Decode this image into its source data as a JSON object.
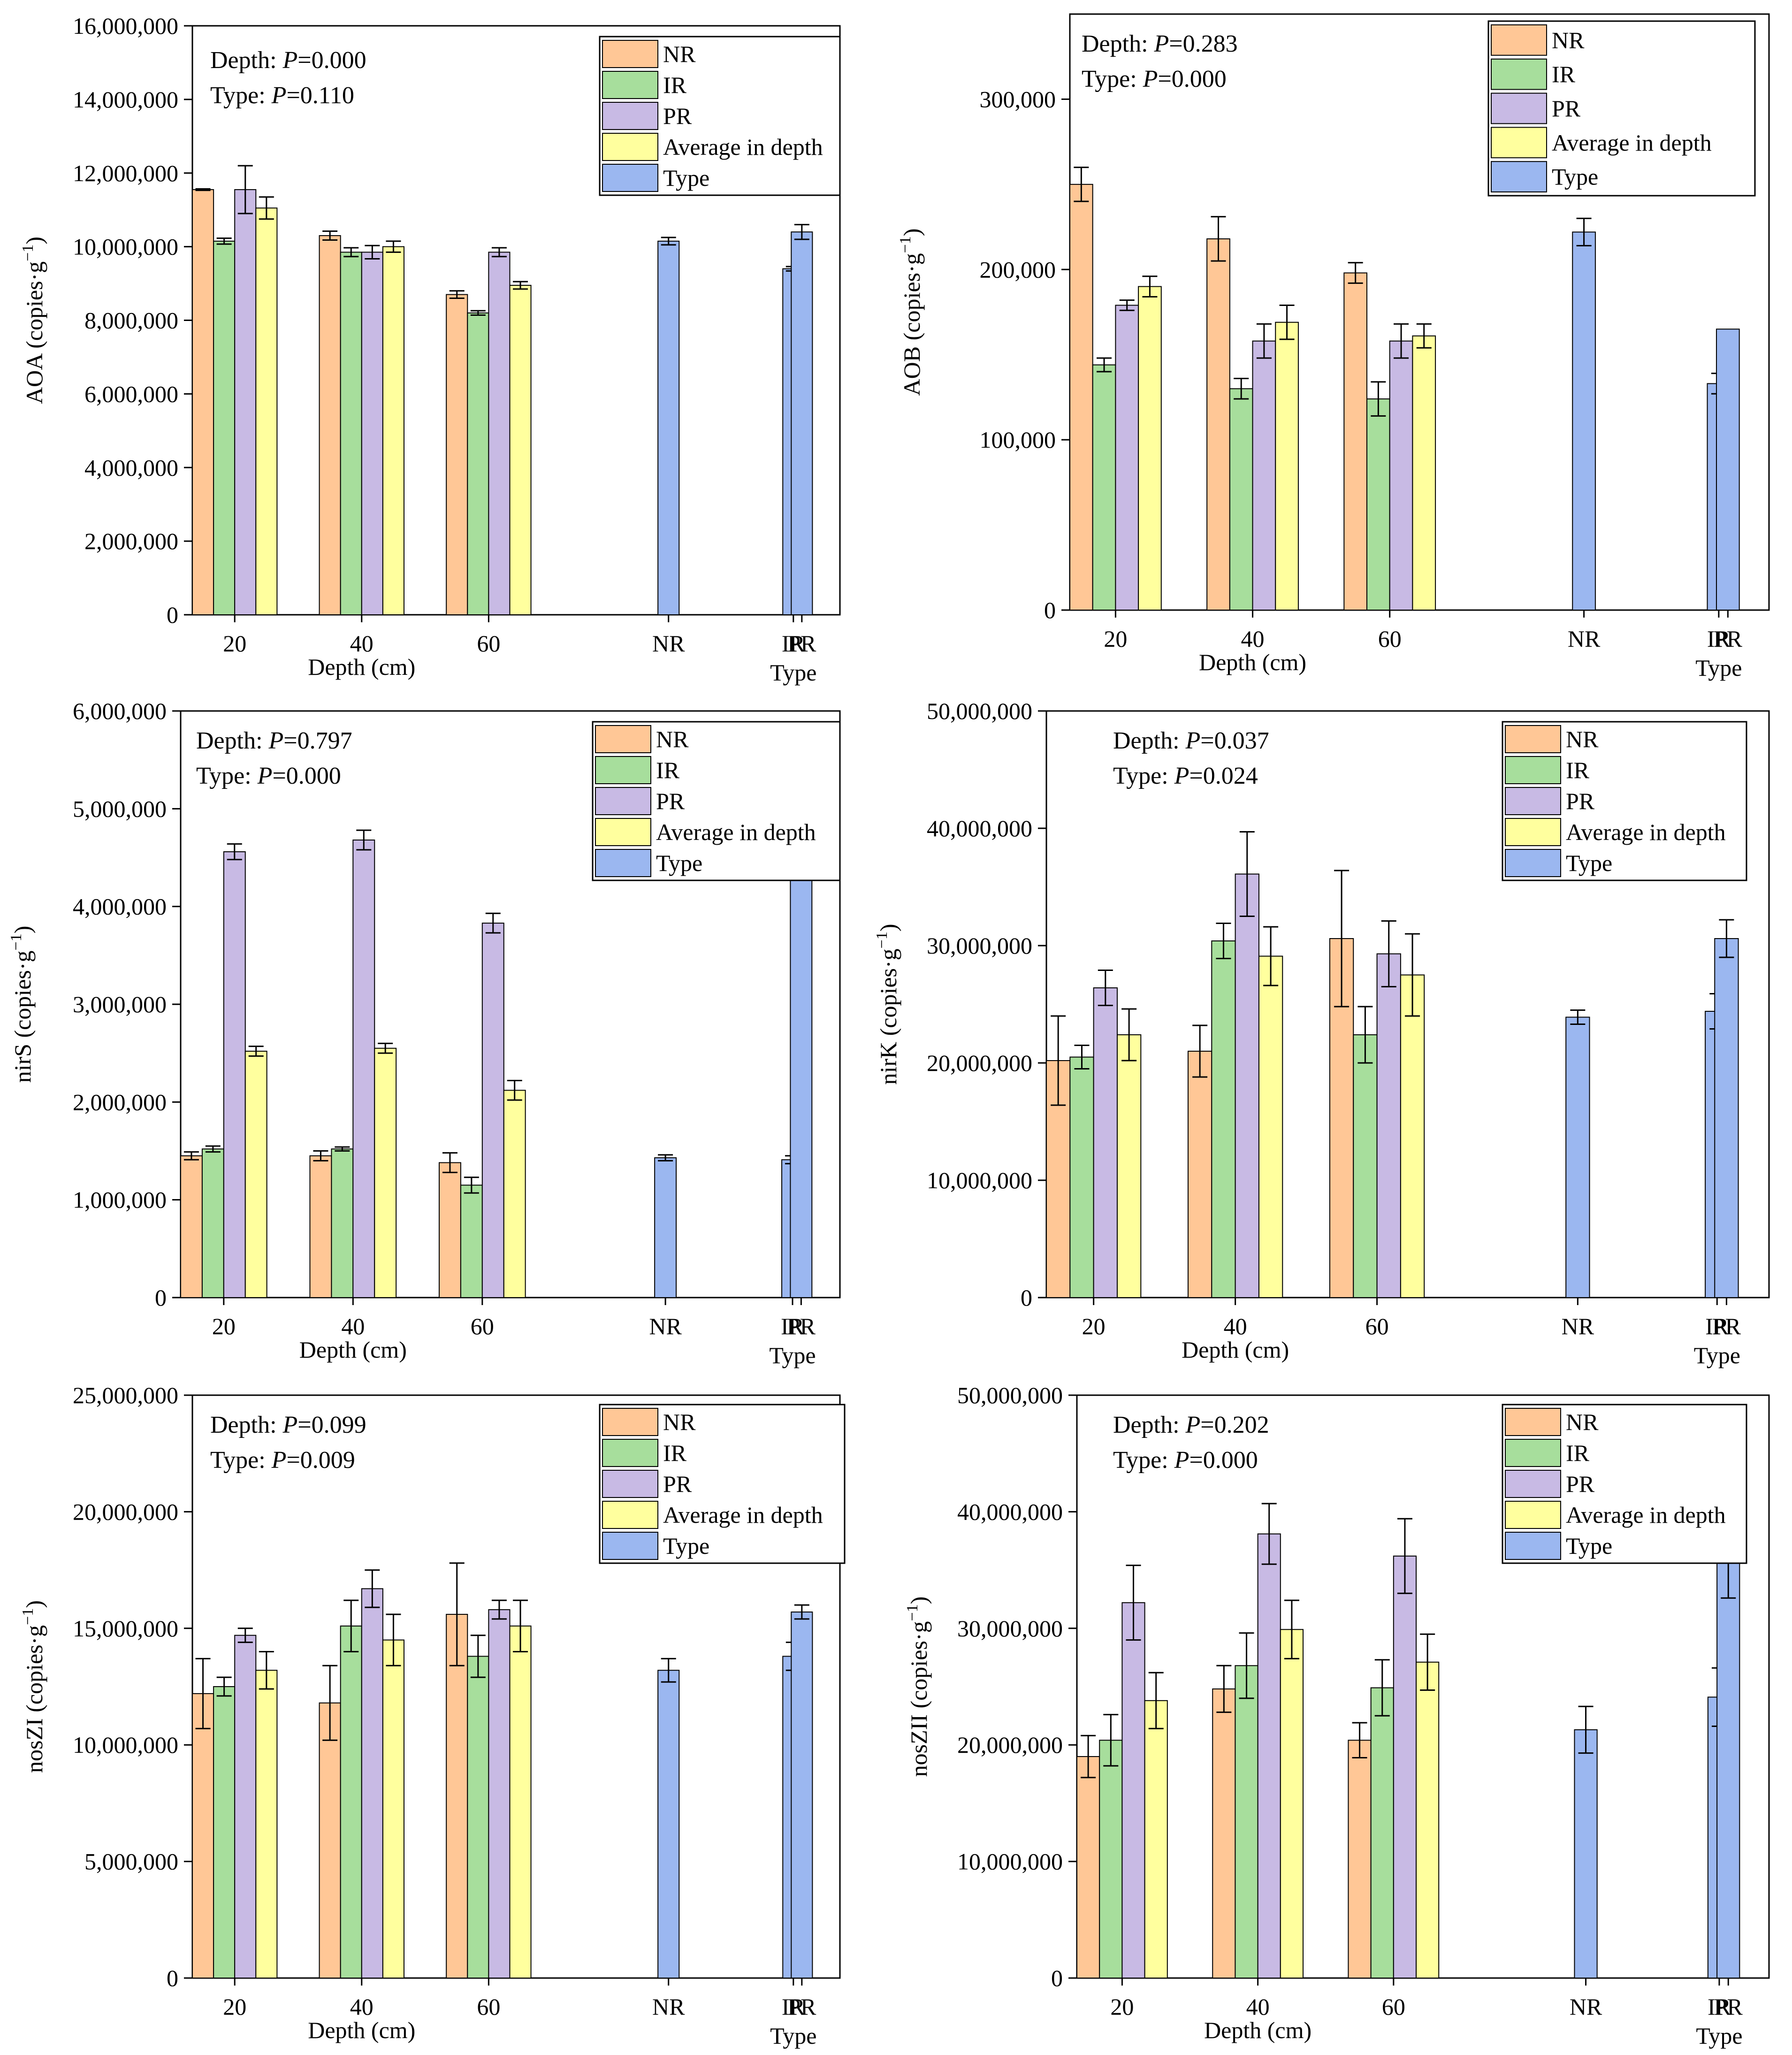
{
  "colors": {
    "NR": "#FFC796",
    "IR": "#A7DE9C",
    "PR": "#C8BAE4",
    "Average in depth": "#FFFF9E",
    "Type": "#9BB7F0"
  },
  "chart_data": [
    {
      "type": "bar",
      "id": "aoa",
      "ylabel_main": "AOA (copies·g",
      "ylabel_sup": "−1",
      "ylabel_end": ")",
      "ylim": [
        0,
        16000000
      ],
      "yticks": [
        0,
        2000000,
        4000000,
        6000000,
        8000000,
        10000000,
        12000000,
        14000000,
        16000000
      ],
      "ytick_labels": [
        "0",
        "2,000,000",
        "4,000,000",
        "6,000,000",
        "8,000,000",
        "10,000,000",
        "12,000,000",
        "14,000,000",
        "16,000,000"
      ],
      "depth_categories": [
        "20",
        "40",
        "60"
      ],
      "type_categories": [
        "NR",
        "IR",
        "PR"
      ],
      "xlabel_depth": "Depth (cm)",
      "xlabel_type": "Type",
      "stats": [
        {
          "prefix": "Depth: ",
          "p": "P",
          "value": "=0.000"
        },
        {
          "prefix": "Type: ",
          "p": "P",
          "value": "=0.110"
        }
      ],
      "legend": [
        "NR",
        "IR",
        "PR",
        "Average in depth",
        "Type"
      ],
      "series": [
        {
          "name": "NR",
          "values": [
            11550000,
            10300000,
            8700000
          ],
          "errors": [
            20000,
            120000,
            100000
          ]
        },
        {
          "name": "IR",
          "values": [
            10150000,
            9850000,
            8200000
          ],
          "errors": [
            80000,
            120000,
            60000
          ]
        },
        {
          "name": "PR",
          "values": [
            11550000,
            9850000,
            9850000
          ],
          "errors": [
            650000,
            180000,
            120000
          ]
        },
        {
          "name": "Average in depth",
          "values": [
            11050000,
            10000000,
            8950000
          ],
          "errors": [
            300000,
            150000,
            100000
          ]
        }
      ],
      "type_series": {
        "name": "Type",
        "values": [
          10150000,
          9400000,
          10400000
        ],
        "errors": [
          100000,
          60000,
          200000
        ]
      }
    },
    {
      "type": "bar",
      "id": "aob",
      "ylabel_main": "AOB (copies·g",
      "ylabel_sup": "−1",
      "ylabel_end": ")",
      "ylim": [
        0,
        350000
      ],
      "yticks": [
        0,
        100000,
        200000,
        300000
      ],
      "ytick_labels": [
        "0",
        "100,000",
        "200,000",
        "300,000"
      ],
      "depth_categories": [
        "20",
        "40",
        "60"
      ],
      "type_categories": [
        "NR",
        "IR",
        "PR"
      ],
      "xlabel_depth": "Depth (cm)",
      "xlabel_type": "Type",
      "stats": [
        {
          "prefix": "Depth: ",
          "p": "P",
          "value": "=0.283"
        },
        {
          "prefix": "Type: ",
          "p": "P",
          "value": "=0.000"
        }
      ],
      "legend": [
        "NR",
        "IR",
        "PR",
        "Average in depth",
        "Type"
      ],
      "series": [
        {
          "name": "NR",
          "values": [
            250000,
            218000,
            198000
          ],
          "errors": [
            10000,
            13000,
            6000
          ]
        },
        {
          "name": "IR",
          "values": [
            144000,
            130000,
            124000
          ],
          "errors": [
            4000,
            6000,
            10000
          ]
        },
        {
          "name": "PR",
          "values": [
            179000,
            158000,
            158000
          ],
          "errors": [
            3000,
            10000,
            10000
          ]
        },
        {
          "name": "Average in depth",
          "values": [
            190000,
            169000,
            161000
          ],
          "errors": [
            6000,
            10000,
            7000
          ]
        }
      ],
      "type_series": {
        "name": "Type",
        "values": [
          222000,
          133000,
          165000
        ],
        "errors": [
          8000,
          6000,
          0
        ]
      }
    },
    {
      "type": "bar",
      "id": "nirs",
      "ylabel_main": "nirS (copies·g",
      "ylabel_sup": "−1",
      "ylabel_end": ")",
      "ylim": [
        0,
        6000000
      ],
      "yticks": [
        0,
        1000000,
        2000000,
        3000000,
        4000000,
        5000000,
        6000000
      ],
      "ytick_labels": [
        "0",
        "1,000,000",
        "2,000,000",
        "3,000,000",
        "4,000,000",
        "5,000,000",
        "6,000,000"
      ],
      "depth_categories": [
        "20",
        "40",
        "60"
      ],
      "type_categories": [
        "NR",
        "IR",
        "PR"
      ],
      "xlabel_depth": "Depth (cm)",
      "xlabel_type": "Type",
      "stats": [
        {
          "prefix": "Depth: ",
          "p": "P",
          "value": "=0.797"
        },
        {
          "prefix": "Type: ",
          "p": "P",
          "value": "=0.000"
        }
      ],
      "legend": [
        "NR",
        "IR",
        "PR",
        "Average in depth",
        "Type"
      ],
      "series": [
        {
          "name": "NR",
          "values": [
            1450000,
            1450000,
            1380000
          ],
          "errors": [
            40000,
            50000,
            100000
          ]
        },
        {
          "name": "IR",
          "values": [
            1520000,
            1520000,
            1150000
          ],
          "errors": [
            30000,
            20000,
            80000
          ]
        },
        {
          "name": "PR",
          "values": [
            4560000,
            4680000,
            3830000
          ],
          "errors": [
            80000,
            100000,
            100000
          ]
        },
        {
          "name": "Average in depth",
          "values": [
            2520000,
            2550000,
            2120000
          ],
          "errors": [
            50000,
            50000,
            100000
          ]
        }
      ],
      "type_series": {
        "name": "Type",
        "values": [
          1430000,
          1410000,
          4350000
        ],
        "errors": [
          30000,
          40000,
          20000
        ]
      }
    },
    {
      "type": "bar",
      "id": "nirk",
      "ylabel_main": "nirK (copies·g",
      "ylabel_sup": "−1",
      "ylabel_end": ")",
      "ylim": [
        0,
        50000000
      ],
      "yticks": [
        0,
        10000000,
        20000000,
        30000000,
        40000000,
        50000000
      ],
      "ytick_labels": [
        "0",
        "10,000,000",
        "20,000,000",
        "30,000,000",
        "40,000,000",
        "50,000,000"
      ],
      "depth_categories": [
        "20",
        "40",
        "60"
      ],
      "type_categories": [
        "NR",
        "IR",
        "PR"
      ],
      "xlabel_depth": "Depth (cm)",
      "xlabel_type": "Type",
      "stats": [
        {
          "prefix": "Depth: ",
          "p": "P",
          "value": "=0.037"
        },
        {
          "prefix": "Type: ",
          "p": "P",
          "value": "=0.024"
        }
      ],
      "legend": [
        "NR",
        "IR",
        "PR",
        "Average in depth",
        "Type"
      ],
      "series": [
        {
          "name": "NR",
          "values": [
            20200000,
            21000000,
            30600000
          ],
          "errors": [
            3800000,
            2200000,
            5800000
          ]
        },
        {
          "name": "IR",
          "values": [
            20500000,
            30400000,
            22400000
          ],
          "errors": [
            1000000,
            1500000,
            2400000
          ]
        },
        {
          "name": "PR",
          "values": [
            26400000,
            36100000,
            29300000
          ],
          "errors": [
            1500000,
            3600000,
            2800000
          ]
        },
        {
          "name": "Average in depth",
          "values": [
            22400000,
            29100000,
            27500000
          ],
          "errors": [
            2200000,
            2500000,
            3500000
          ]
        }
      ],
      "type_series": {
        "name": "Type",
        "values": [
          23900000,
          24400000,
          30600000
        ],
        "errors": [
          600000,
          1500000,
          1600000
        ]
      }
    },
    {
      "type": "bar",
      "id": "noszi",
      "ylabel_main": "nosZI (copies·g",
      "ylabel_sup": "−1",
      "ylabel_end": ")",
      "ylim": [
        0,
        25000000
      ],
      "yticks": [
        0,
        5000000,
        10000000,
        15000000,
        20000000,
        25000000
      ],
      "ytick_labels": [
        "0",
        "5,000,000",
        "10,000,000",
        "15,000,000",
        "20,000,000",
        "25,000,000"
      ],
      "depth_categories": [
        "20",
        "40",
        "60"
      ],
      "type_categories": [
        "NR",
        "IR",
        "PR"
      ],
      "xlabel_depth": "Depth (cm)",
      "xlabel_type": "Type",
      "stats": [
        {
          "prefix": "Depth: ",
          "p": "P",
          "value": "=0.099"
        },
        {
          "prefix": "Type: ",
          "p": "P",
          "value": "=0.009"
        }
      ],
      "legend": [
        "NR",
        "IR",
        "PR",
        "Average in depth",
        "Type"
      ],
      "series": [
        {
          "name": "NR",
          "values": [
            12200000,
            11800000,
            15600000
          ],
          "errors": [
            1500000,
            1600000,
            2200000
          ]
        },
        {
          "name": "IR",
          "values": [
            12500000,
            15100000,
            13800000
          ],
          "errors": [
            400000,
            1100000,
            900000
          ]
        },
        {
          "name": "PR",
          "values": [
            14700000,
            16700000,
            15800000
          ],
          "errors": [
            300000,
            800000,
            400000
          ]
        },
        {
          "name": "Average in depth",
          "values": [
            13200000,
            14500000,
            15100000
          ],
          "errors": [
            800000,
            1100000,
            1100000
          ]
        }
      ],
      "type_series": {
        "name": "Type",
        "values": [
          13200000,
          13800000,
          15700000
        ],
        "errors": [
          500000,
          600000,
          300000
        ]
      }
    },
    {
      "type": "bar",
      "id": "noszii",
      "ylabel_main": "nosZII (copies·g",
      "ylabel_sup": "−1",
      "ylabel_end": ")",
      "ylim": [
        0,
        50000000
      ],
      "yticks": [
        0,
        10000000,
        20000000,
        30000000,
        40000000,
        50000000
      ],
      "ytick_labels": [
        "0",
        "10,000,000",
        "20,000,000",
        "30,000,000",
        "40,000,000",
        "50,000,000"
      ],
      "depth_categories": [
        "20",
        "40",
        "60"
      ],
      "type_categories": [
        "NR",
        "IR",
        "PR"
      ],
      "xlabel_depth": "Depth (cm)",
      "xlabel_type": "Type",
      "stats": [
        {
          "prefix": "Depth: ",
          "p": "P",
          "value": "=0.202"
        },
        {
          "prefix": "Type: ",
          "p": "P",
          "value": "=0.000"
        }
      ],
      "legend": [
        "NR",
        "IR",
        "PR",
        "Average in depth",
        "Type"
      ],
      "series": [
        {
          "name": "NR",
          "values": [
            19000000,
            24800000,
            20400000
          ],
          "errors": [
            1800000,
            2000000,
            1500000
          ]
        },
        {
          "name": "IR",
          "values": [
            20400000,
            26800000,
            24900000
          ],
          "errors": [
            2200000,
            2800000,
            2400000
          ]
        },
        {
          "name": "PR",
          "values": [
            32200000,
            38100000,
            36200000
          ],
          "errors": [
            3200000,
            2600000,
            3200000
          ]
        },
        {
          "name": "Average in depth",
          "values": [
            23800000,
            29900000,
            27100000
          ],
          "errors": [
            2400000,
            2500000,
            2400000
          ]
        }
      ],
      "type_series": {
        "name": "Type",
        "values": [
          21300000,
          24100000,
          35600000
        ],
        "errors": [
          2000000,
          2500000,
          3000000
        ]
      }
    }
  ]
}
